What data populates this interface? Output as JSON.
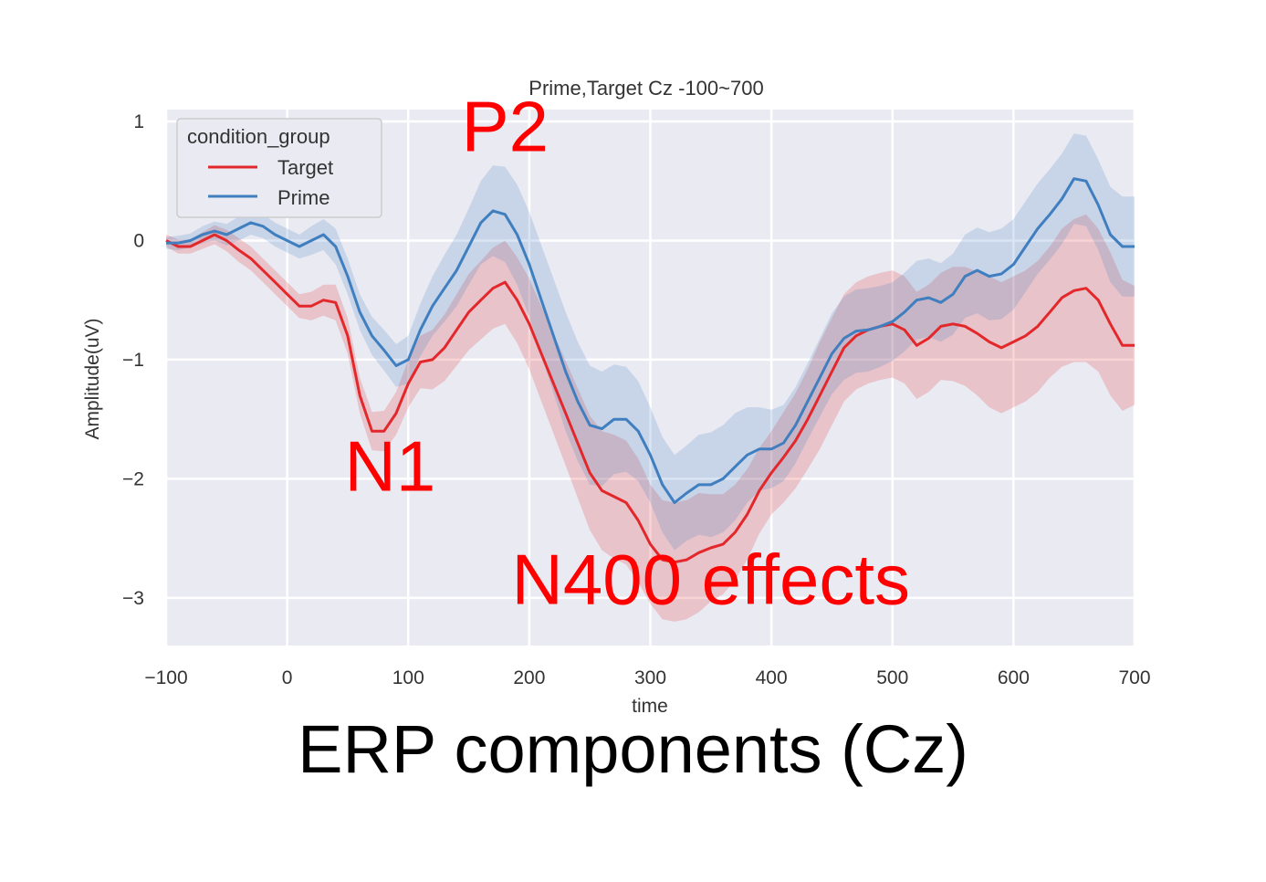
{
  "chart_data": {
    "type": "line",
    "title": "Prime,Target Cz -100~700",
    "xlabel": "time",
    "ylabel": "Amplitude(uV)",
    "xlim": [
      -100,
      700
    ],
    "ylim": [
      -3.4,
      1.1
    ],
    "xticks": [
      -100,
      0,
      100,
      200,
      300,
      400,
      500,
      600,
      700
    ],
    "xtick_labels": [
      "−100",
      "0",
      "100",
      "200",
      "300",
      "400",
      "500",
      "600",
      "700"
    ],
    "yticks": [
      1,
      0,
      -1,
      -2,
      -3
    ],
    "ytick_labels": [
      "1",
      "0",
      "−1",
      "−2",
      "−3"
    ],
    "grid": true,
    "background": "#eaeaf2",
    "legend": {
      "title": "condition_group",
      "position": "top-left"
    },
    "series": [
      {
        "name": "Target",
        "color": "#e3282c",
        "x": [
          -100,
          -90,
          -80,
          -70,
          -60,
          -50,
          -40,
          -30,
          -20,
          -10,
          0,
          10,
          20,
          30,
          40,
          50,
          60,
          70,
          80,
          90,
          100,
          110,
          120,
          130,
          140,
          150,
          160,
          170,
          180,
          190,
          200,
          210,
          220,
          230,
          240,
          250,
          260,
          270,
          280,
          290,
          300,
          310,
          320,
          330,
          340,
          350,
          360,
          370,
          380,
          390,
          400,
          410,
          420,
          430,
          440,
          450,
          460,
          470,
          480,
          490,
          500,
          510,
          520,
          530,
          540,
          550,
          560,
          570,
          580,
          590,
          600,
          610,
          620,
          630,
          640,
          650,
          660,
          670,
          680,
          690,
          700
        ],
        "y": [
          0.0,
          -0.05,
          -0.05,
          0.0,
          0.05,
          0.0,
          -0.08,
          -0.15,
          -0.25,
          -0.35,
          -0.45,
          -0.55,
          -0.55,
          -0.5,
          -0.52,
          -0.8,
          -1.3,
          -1.6,
          -1.6,
          -1.45,
          -1.2,
          -1.02,
          -1.0,
          -0.9,
          -0.75,
          -0.6,
          -0.5,
          -0.4,
          -0.35,
          -0.5,
          -0.7,
          -0.95,
          -1.2,
          -1.45,
          -1.7,
          -1.95,
          -2.1,
          -2.15,
          -2.2,
          -2.35,
          -2.55,
          -2.68,
          -2.7,
          -2.68,
          -2.62,
          -2.58,
          -2.55,
          -2.45,
          -2.3,
          -2.1,
          -1.95,
          -1.82,
          -1.68,
          -1.5,
          -1.3,
          -1.1,
          -0.9,
          -0.8,
          -0.75,
          -0.72,
          -0.7,
          -0.75,
          -0.88,
          -0.82,
          -0.72,
          -0.7,
          -0.72,
          -0.78,
          -0.85,
          -0.9,
          -0.85,
          -0.8,
          -0.72,
          -0.6,
          -0.48,
          -0.42,
          -0.4,
          -0.5,
          -0.7,
          -0.88,
          -0.88
        ],
        "ci_halfwidth": [
          0.05,
          0.06,
          0.06,
          0.07,
          0.08,
          0.09,
          0.1,
          0.1,
          0.1,
          0.1,
          0.1,
          0.1,
          0.12,
          0.13,
          0.15,
          0.15,
          0.15,
          0.16,
          0.17,
          0.18,
          0.2,
          0.22,
          0.25,
          0.28,
          0.3,
          0.32,
          0.33,
          0.34,
          0.35,
          0.36,
          0.38,
          0.4,
          0.42,
          0.44,
          0.46,
          0.48,
          0.5,
          0.52,
          0.52,
          0.52,
          0.5,
          0.5,
          0.5,
          0.5,
          0.5,
          0.45,
          0.42,
          0.4,
          0.38,
          0.36,
          0.35,
          0.38,
          0.4,
          0.42,
          0.45,
          0.45,
          0.45,
          0.45,
          0.45,
          0.45,
          0.45,
          0.45,
          0.45,
          0.45,
          0.45,
          0.48,
          0.5,
          0.52,
          0.55,
          0.55,
          0.55,
          0.55,
          0.55,
          0.55,
          0.58,
          0.6,
          0.62,
          0.6,
          0.6,
          0.55,
          0.5
        ]
      },
      {
        "name": "Prime",
        "color": "#3f7ebf",
        "x": [
          -100,
          -90,
          -80,
          -70,
          -60,
          -50,
          -40,
          -30,
          -20,
          -10,
          0,
          10,
          20,
          30,
          40,
          50,
          60,
          70,
          80,
          90,
          100,
          110,
          120,
          130,
          140,
          150,
          160,
          170,
          180,
          190,
          200,
          210,
          220,
          230,
          240,
          250,
          260,
          270,
          280,
          290,
          300,
          310,
          320,
          330,
          340,
          350,
          360,
          370,
          380,
          390,
          400,
          410,
          420,
          430,
          440,
          450,
          460,
          470,
          480,
          490,
          500,
          510,
          520,
          530,
          540,
          550,
          560,
          570,
          580,
          590,
          600,
          610,
          620,
          630,
          640,
          650,
          660,
          670,
          680,
          690,
          700
        ],
        "y": [
          -0.02,
          -0.02,
          0.0,
          0.05,
          0.08,
          0.05,
          0.1,
          0.15,
          0.12,
          0.05,
          0.0,
          -0.05,
          0.0,
          0.05,
          -0.05,
          -0.3,
          -0.6,
          -0.8,
          -0.92,
          -1.05,
          -1.0,
          -0.75,
          -0.55,
          -0.4,
          -0.25,
          -0.05,
          0.15,
          0.25,
          0.22,
          0.05,
          -0.2,
          -0.5,
          -0.8,
          -1.1,
          -1.35,
          -1.55,
          -1.58,
          -1.5,
          -1.5,
          -1.6,
          -1.8,
          -2.05,
          -2.2,
          -2.12,
          -2.05,
          -2.05,
          -2.0,
          -1.9,
          -1.8,
          -1.75,
          -1.75,
          -1.7,
          -1.55,
          -1.35,
          -1.15,
          -0.95,
          -0.82,
          -0.76,
          -0.75,
          -0.72,
          -0.68,
          -0.6,
          -0.5,
          -0.48,
          -0.52,
          -0.45,
          -0.3,
          -0.25,
          -0.3,
          -0.28,
          -0.2,
          -0.05,
          0.1,
          0.22,
          0.35,
          0.52,
          0.5,
          0.3,
          0.05,
          -0.05,
          -0.05
        ],
        "ci_halfwidth": [
          0.05,
          0.06,
          0.06,
          0.07,
          0.08,
          0.09,
          0.1,
          0.1,
          0.1,
          0.1,
          0.1,
          0.1,
          0.12,
          0.13,
          0.15,
          0.15,
          0.15,
          0.16,
          0.17,
          0.18,
          0.2,
          0.22,
          0.25,
          0.28,
          0.3,
          0.32,
          0.35,
          0.38,
          0.4,
          0.42,
          0.44,
          0.46,
          0.48,
          0.5,
          0.5,
          0.5,
          0.48,
          0.46,
          0.44,
          0.42,
          0.4,
          0.4,
          0.4,
          0.4,
          0.42,
          0.44,
          0.45,
          0.45,
          0.4,
          0.35,
          0.33,
          0.32,
          0.32,
          0.32,
          0.33,
          0.34,
          0.35,
          0.35,
          0.35,
          0.34,
          0.33,
          0.33,
          0.33,
          0.33,
          0.33,
          0.34,
          0.35,
          0.36,
          0.37,
          0.38,
          0.38,
          0.38,
          0.38,
          0.38,
          0.38,
          0.38,
          0.38,
          0.38,
          0.4,
          0.42,
          0.42
        ]
      }
    ],
    "annotations": [
      {
        "text": "P2",
        "x": 180,
        "y": 0.75
      },
      {
        "text": "N1",
        "x": 85,
        "y": -2.1
      },
      {
        "text": "N400 effects",
        "x": 350,
        "y": -3.05
      }
    ]
  },
  "caption": "ERP components (Cz)"
}
